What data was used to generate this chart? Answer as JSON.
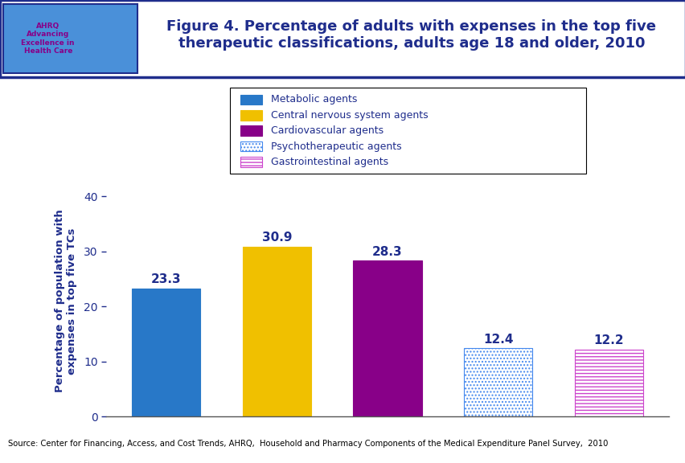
{
  "title": "Figure 4. Percentage of adults with expenses in the top five\ntherapeutic classifications, adults age 18 and older, 2010",
  "ylabel": "Percentage of population with\nexpenses in top five TCs",
  "categories": [
    "Metabolic agents",
    "Central nervous system agents",
    "Cardiovascular agents",
    "Psychotherapeutic agents",
    "Gastrointestinal agents"
  ],
  "values": [
    23.3,
    30.9,
    28.3,
    12.4,
    12.2
  ],
  "value_labels": [
    "23.3",
    "30.9",
    "28.3",
    "12.4",
    "12.2"
  ],
  "bar_facecolors": [
    "#2878C8",
    "#F0C000",
    "#880088",
    "#FFFFFF",
    "#FFFFFF"
  ],
  "bar_edgecolors": [
    "#2878C8",
    "#F0C000",
    "#880088",
    "#4488EE",
    "#CC44CC"
  ],
  "bar_hatches": [
    "",
    "",
    "",
    "....",
    "----"
  ],
  "ylim": [
    0,
    42
  ],
  "yticks": [
    0,
    10,
    20,
    30,
    40
  ],
  "title_color": "#1F2D8C",
  "title_fontsize": 13,
  "tick_color": "#1F2D8C",
  "value_label_color": "#1F2D8C",
  "value_label_fontsize": 11,
  "ylabel_color": "#1F2D8C",
  "ylabel_fontsize": 9.5,
  "legend_labels": [
    "Metabolic agents",
    "Central nervous system agents",
    "Cardiovascular agents",
    "Psychotherapeutic agents",
    "Gastrointestinal agents"
  ],
  "legend_facecolors": [
    "#2878C8",
    "#F0C000",
    "#880088",
    "#FFFFFF",
    "#FFFFFF"
  ],
  "legend_edgecolors": [
    "#2878C8",
    "#F0C000",
    "#880088",
    "#4488EE",
    "#CC44CC"
  ],
  "legend_hatches": [
    "",
    "",
    "",
    "....",
    "----"
  ],
  "legend_fontsize": 9,
  "source_text": "Source: Center for Financing, Access, and Cost Trends, AHRQ,  Household and Pharmacy Components of the Medical Expenditure Panel Survey,  2010",
  "background_color": "#FFFFFF",
  "blue_line_color": "#1F2D8C",
  "source_bg_color": "#DCE6F1",
  "header_border_color": "#1F2D8C",
  "logo_bg_color": "#4A90D9"
}
